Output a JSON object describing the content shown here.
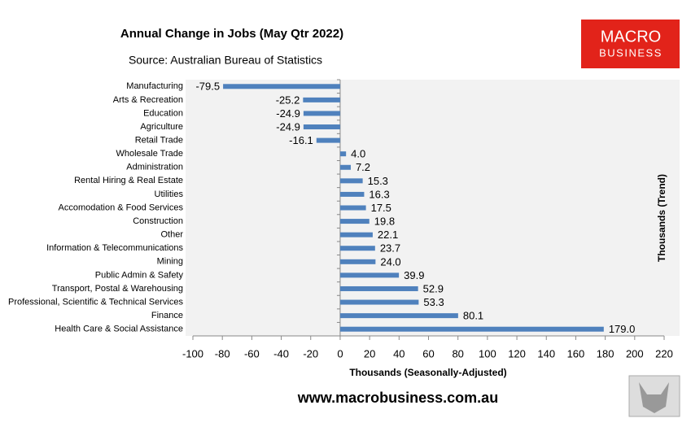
{
  "chart_data": {
    "type": "bar",
    "orientation": "horizontal",
    "title": "Annual Change in Jobs (May Qtr 2022)",
    "subtitle": "Source: Australian Bureau of Statistics",
    "xlabel": "Thousands (Seasonally-Adjusted)",
    "ylabel": "Thousands (Trend)",
    "categories": [
      "Manufacturing",
      "Arts & Recreation",
      "Education",
      "Agriculture",
      "Retail Trade",
      "Wholesale Trade",
      "Administration",
      "Rental Hiring & Real Estate",
      "Utilities",
      "Accomodation & Food Services",
      "Construction",
      "Other",
      "Information & Telecommunications",
      "Mining",
      "Public Admin & Safety",
      "Transport, Postal & Warehousing",
      "Professional, Scientific & Technical Services",
      "Finance",
      "Health Care & Social Assistance"
    ],
    "values": [
      -79.5,
      -25.2,
      -24.9,
      -24.9,
      -16.1,
      4.0,
      7.2,
      15.3,
      16.3,
      17.5,
      19.8,
      22.1,
      23.7,
      24.0,
      39.9,
      52.9,
      53.3,
      80.1,
      179.0
    ],
    "value_labels": [
      "-79.5",
      "-25.2",
      "-24.9",
      "-24.9",
      "-16.1",
      "4.0",
      "7.2",
      "15.3",
      "16.3",
      "17.5",
      "19.8",
      "22.1",
      "23.7",
      "24.0",
      "39.9",
      "52.9",
      "53.3",
      "80.1",
      "179.0"
    ],
    "color": "#4f81bd",
    "xlim": [
      -100,
      220
    ],
    "xticks": [
      -100,
      -80,
      -60,
      -40,
      -20,
      0,
      20,
      40,
      60,
      80,
      100,
      120,
      140,
      160,
      180,
      200,
      220
    ]
  },
  "logo": {
    "line1": "MACRO",
    "line2": "BUSINESS"
  },
  "footer": "www.macrobusiness.com.au"
}
